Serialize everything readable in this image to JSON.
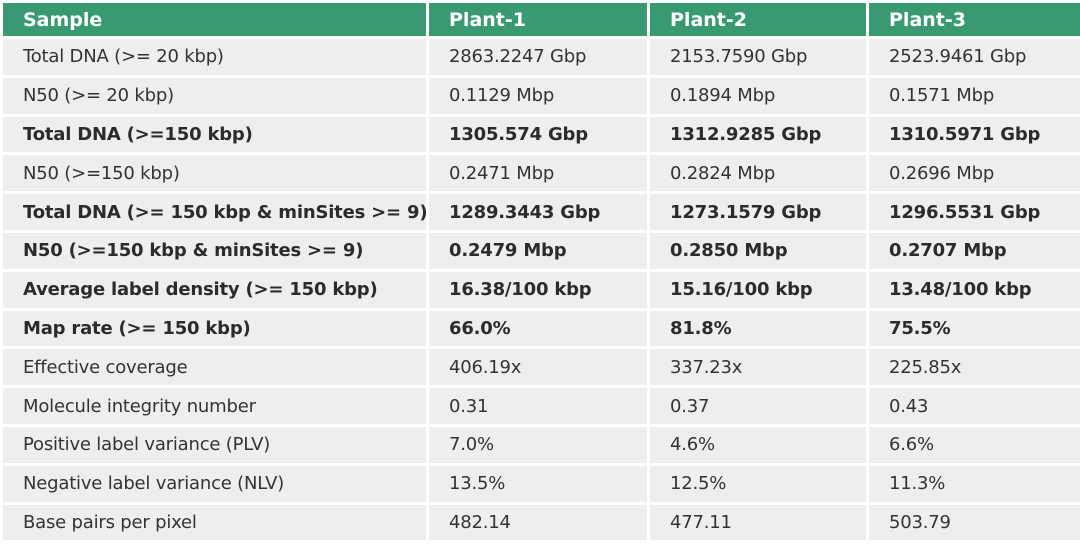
{
  "table": {
    "headers": [
      "Sample",
      "Plant-1",
      "Plant-2",
      "Plant-3"
    ],
    "header_color": "#399a72",
    "cell_color": "#eeeeee",
    "rows": [
      {
        "bold": false,
        "cells": [
          "Total DNA (>= 20 kbp)",
          "2863.2247 Gbp",
          "2153.7590 Gbp",
          "2523.9461 Gbp"
        ]
      },
      {
        "bold": false,
        "cells": [
          "N50 (>= 20 kbp)",
          "0.1129 Mbp",
          "0.1894 Mbp",
          "0.1571 Mbp"
        ]
      },
      {
        "bold": true,
        "cells": [
          "Total DNA (>=150 kbp)",
          "1305.574 Gbp",
          "1312.9285 Gbp",
          "1310.5971 Gbp"
        ]
      },
      {
        "bold": false,
        "cells": [
          "N50 (>=150 kbp)",
          "0.2471 Mbp",
          "0.2824 Mbp",
          "0.2696 Mbp"
        ]
      },
      {
        "bold": true,
        "cells": [
          "Total DNA (>= 150 kbp & minSites >= 9)",
          "1289.3443 Gbp",
          "1273.1579 Gbp",
          "1296.5531 Gbp"
        ]
      },
      {
        "bold": true,
        "cells": [
          "N50 (>=150 kbp & minSites >= 9)",
          "0.2479 Mbp",
          "0.2850 Mbp",
          "0.2707 Mbp"
        ]
      },
      {
        "bold": true,
        "cells": [
          "Average label density (>= 150 kbp)",
          "16.38/100 kbp",
          "15.16/100 kbp",
          "13.48/100 kbp"
        ]
      },
      {
        "bold": true,
        "cells": [
          "Map rate (>= 150 kbp)",
          "66.0%",
          "81.8%",
          "75.5%"
        ]
      },
      {
        "bold": false,
        "cells": [
          "Effective coverage",
          "406.19x",
          "337.23x",
          "225.85x"
        ]
      },
      {
        "bold": false,
        "cells": [
          "Molecule integrity number",
          "0.31",
          "0.37",
          "0.43"
        ]
      },
      {
        "bold": false,
        "cells": [
          "Positive label variance (PLV)",
          "7.0%",
          "4.6%",
          "6.6%"
        ]
      },
      {
        "bold": false,
        "cells": [
          "Negative label variance (NLV)",
          "13.5%",
          "12.5%",
          "11.3%"
        ]
      },
      {
        "bold": false,
        "cells": [
          "Base pairs per pixel",
          "482.14",
          "477.11",
          "503.79"
        ]
      }
    ]
  }
}
